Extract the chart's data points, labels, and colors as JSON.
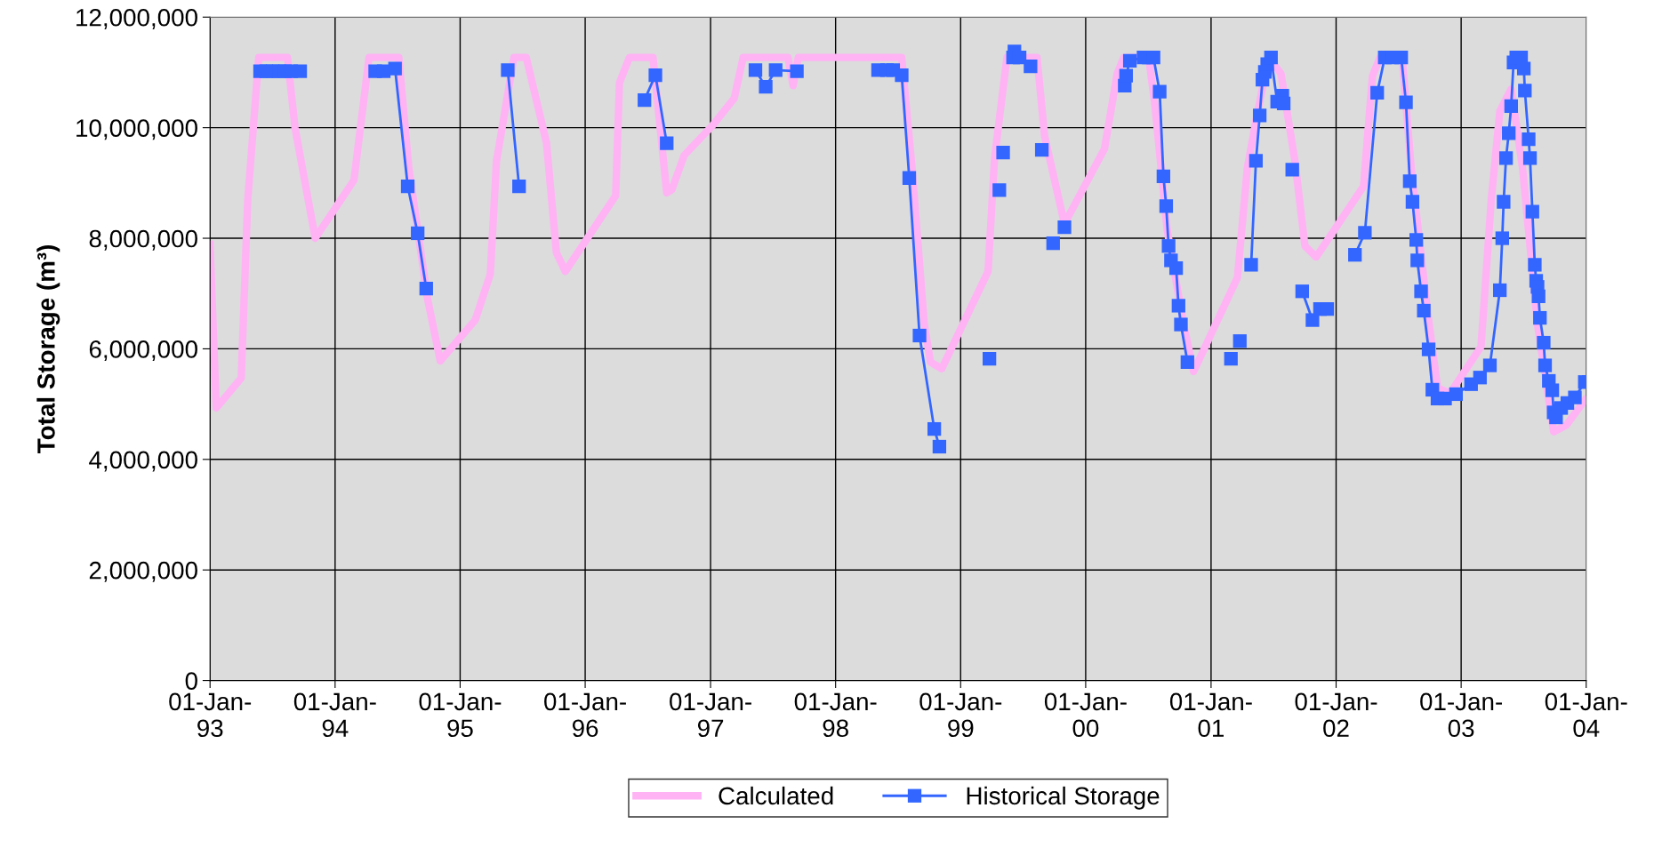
{
  "chart_data": {
    "type": "line",
    "ylabel": "Total Storage (m³)",
    "xlim": [
      "1993-01-01",
      "2004-01-01"
    ],
    "xticks": [
      {
        "value": "1993-01-01",
        "label": "01-Jan-\n93"
      },
      {
        "value": "1994-01-01",
        "label": "01-Jan-\n94"
      },
      {
        "value": "1995-01-01",
        "label": "01-Jan-\n95"
      },
      {
        "value": "1996-01-01",
        "label": "01-Jan-\n96"
      },
      {
        "value": "1997-01-01",
        "label": "01-Jan-\n97"
      },
      {
        "value": "1998-01-01",
        "label": "01-Jan-\n98"
      },
      {
        "value": "1999-01-01",
        "label": "01-Jan-\n99"
      },
      {
        "value": "2000-01-01",
        "label": "01-Jan-\n00"
      },
      {
        "value": "2001-01-01",
        "label": "01-Jan-\n01"
      },
      {
        "value": "2002-01-01",
        "label": "01-Jan-\n02"
      },
      {
        "value": "2003-01-01",
        "label": "01-Jan-\n03"
      },
      {
        "value": "2004-01-01",
        "label": "01-Jan-\n04"
      }
    ],
    "ylim": [
      0,
      12000000
    ],
    "yticks": [
      {
        "value": 0,
        "label": "0"
      },
      {
        "value": 2000000,
        "label": "2,000,000"
      },
      {
        "value": 4000000,
        "label": "4,000,000"
      },
      {
        "value": 6000000,
        "label": "6,000,000"
      },
      {
        "value": 8000000,
        "label": "8,000,000"
      },
      {
        "value": 10000000,
        "label": "10,000,000"
      },
      {
        "value": 12000000,
        "label": "12,000,000"
      }
    ],
    "grid": true,
    "legend": "bottom",
    "series": [
      {
        "name": "Calculated",
        "color": "#ffb3f5",
        "marker": "none",
        "x": [
          "1993-01-01",
          "1993-01-19",
          "1993-04-02",
          "1993-04-21",
          "1993-05-23",
          "1993-08-15",
          "1993-09-06",
          "1993-11-04",
          "1994-02-25",
          "1994-04-10",
          "1994-07-06",
          "1994-08-04",
          "1994-09-28",
          "1994-11-04",
          "1995-02-14",
          "1995-03-30",
          "1995-04-17",
          "1995-06-07",
          "1995-07-13",
          "1995-09-10",
          "1995-10-09",
          "1995-11-04",
          "1996-03-30",
          "1996-04-10",
          "1996-05-09",
          "1996-07-17",
          "1996-08-26",
          "1996-09-10",
          "1996-10-16",
          "1997-01-08",
          "1997-03-11",
          "1997-04-06",
          "1997-08-15",
          "1997-08-30",
          "1997-09-14",
          "1998-07-13",
          "1998-08-12",
          "1998-09-17",
          "1998-10-05",
          "1998-11-07",
          "1999-03-22",
          "1999-04-10",
          "1999-05-16",
          "1999-08-12",
          "1999-09-03",
          "1999-10-31",
          "2000-02-25",
          "2000-04-02",
          "2000-04-21",
          "2000-07-03",
          "2000-07-21",
          "2000-08-26",
          "2000-10-13",
          "2000-11-11",
          "2001-03-19",
          "2001-04-17",
          "2001-05-12",
          "2001-06-18",
          "2001-07-24",
          "2001-09-03",
          "2001-10-02",
          "2001-11-04",
          "2002-03-22",
          "2002-04-17",
          "2002-05-09",
          "2002-07-13",
          "2002-08-08",
          "2002-09-24",
          "2002-10-24",
          "2002-11-29",
          "2003-02-28",
          "2003-03-30",
          "2003-04-24",
          "2003-05-27",
          "2003-06-29",
          "2003-08-12",
          "2003-09-28",
          "2003-11-04",
          "2003-12-28"
        ],
        "values": [
          7890000,
          4930000,
          5470000,
          8700000,
          11270000,
          11270000,
          10000000,
          8000000,
          9050000,
          11270000,
          11270000,
          9280000,
          6900000,
          5780000,
          6520000,
          7350000,
          9390000,
          11270000,
          11270000,
          9730000,
          7740000,
          7400000,
          8770000,
          10810000,
          11270000,
          11270000,
          8820000,
          8880000,
          9500000,
          10050000,
          10530000,
          11270000,
          11270000,
          10760000,
          11270000,
          11270000,
          9280000,
          6440000,
          5760000,
          5640000,
          7400000,
          9450000,
          11270000,
          11270000,
          9850000,
          8260000,
          9620000,
          10980000,
          11270000,
          11270000,
          10410000,
          8140000,
          6440000,
          5590000,
          7290000,
          9280000,
          10130000,
          11270000,
          10980000,
          9390000,
          7860000,
          7660000,
          8940000,
          10930000,
          11270000,
          11270000,
          9280000,
          6720000,
          5300000,
          5190000,
          6040000,
          8710000,
          10300000,
          10700000,
          9280000,
          6440000,
          4500000,
          4620000,
          5070000
        ]
      },
      {
        "name": "Historical Storage",
        "color": "#3366ff",
        "marker": "square",
        "x": [
          "1993-05-27",
          "1993-06-14",
          "1993-07-03",
          "1993-07-21",
          "1993-08-08",
          "1993-08-26",
          "1993-09-21",
          null,
          "1994-04-28",
          "1994-05-23",
          "1994-06-25",
          "1994-08-01",
          "1994-08-30",
          "1994-09-24",
          null,
          "1995-05-20",
          "1995-06-22",
          null,
          "1996-06-22",
          "1996-07-24",
          "1996-08-26",
          null,
          "1997-05-12",
          "1997-06-11",
          "1997-07-10",
          "1997-09-10",
          null,
          "1998-05-05",
          "1998-05-31",
          "1998-06-18",
          "1998-07-13",
          "1998-08-04",
          "1998-09-03",
          "1998-10-16",
          "1998-10-31",
          null,
          "1999-03-26",
          null,
          "1999-04-24",
          null,
          "1999-05-05",
          null,
          "1999-06-03",
          "1999-06-07",
          "1999-06-22",
          "1999-07-24",
          null,
          "1999-08-26",
          null,
          "1999-09-28",
          null,
          "1999-10-31",
          null,
          "2000-04-24",
          "2000-04-28",
          "2000-05-09",
          "2000-06-18",
          "2000-07-03",
          "2000-07-17",
          "2000-08-04",
          "2000-08-15",
          "2000-08-23",
          "2000-08-30",
          "2000-09-06",
          "2000-09-21",
          "2000-09-28",
          "2000-10-05",
          "2000-10-24",
          null,
          "2001-02-28",
          null,
          "2001-03-26",
          null,
          "2001-04-28",
          "2001-05-12",
          "2001-05-23",
          "2001-05-31",
          "2001-06-07",
          "2001-06-14",
          "2001-06-25",
          "2001-07-13",
          "2001-07-28",
          "2001-08-01",
          null,
          "2001-08-26",
          null,
          "2001-09-24",
          "2001-10-24",
          "2001-11-15",
          "2001-12-06",
          null,
          "2002-02-25",
          "2002-03-26",
          "2002-05-01",
          "2002-05-23",
          "2002-06-14",
          "2002-07-10",
          "2002-07-24",
          "2002-08-04",
          "2002-08-12",
          "2002-08-23",
          "2002-08-26",
          "2002-09-06",
          "2002-09-14",
          "2002-09-28",
          "2002-10-09",
          "2002-10-24",
          "2002-11-15",
          "2002-12-17",
          "2003-01-30",
          "2003-02-25",
          "2003-03-26",
          "2003-04-24",
          "2003-05-01",
          "2003-05-05",
          "2003-05-12",
          "2003-05-20",
          "2003-05-27",
          "2003-06-03",
          "2003-06-11",
          "2003-06-25",
          "2003-07-03",
          "2003-07-06",
          "2003-07-17",
          "2003-07-21",
          "2003-07-28",
          "2003-08-04",
          "2003-08-08",
          "2003-08-12",
          "2003-08-15",
          "2003-08-19",
          "2003-08-30",
          "2003-09-03",
          "2003-09-14",
          "2003-09-24",
          "2003-09-28",
          "2003-10-05",
          "2003-10-20",
          "2003-11-07",
          "2003-11-29",
          "2003-12-28"
        ],
        "values": [
          11020000,
          11020000,
          11020000,
          11020000,
          11020000,
          11020000,
          11020000,
          null,
          11020000,
          11020000,
          11070000,
          8940000,
          8090000,
          7090000,
          null,
          11040000,
          8940000,
          null,
          10500000,
          10950000,
          9720000,
          null,
          11040000,
          10740000,
          11040000,
          11020000,
          null,
          11040000,
          11040000,
          11040000,
          10950000,
          9090000,
          6240000,
          4550000,
          4230000,
          null,
          5820000,
          null,
          8870000,
          null,
          9550000,
          null,
          11270000,
          11380000,
          11270000,
          11110000,
          null,
          9600000,
          null,
          7910000,
          null,
          8200000,
          null,
          10760000,
          10940000,
          11210000,
          11270000,
          11270000,
          11270000,
          10650000,
          9120000,
          8580000,
          7860000,
          7600000,
          7460000,
          6780000,
          6440000,
          5760000,
          null,
          5820000,
          null,
          6140000,
          null,
          7520000,
          9400000,
          10220000,
          10870000,
          11010000,
          11150000,
          11270000,
          10470000,
          10580000,
          10440000,
          null,
          9240000,
          null,
          7040000,
          6520000,
          6720000,
          6720000,
          null,
          7700000,
          8100000,
          10630000,
          11270000,
          11270000,
          11270000,
          10460000,
          9030000,
          8660000,
          7970000,
          7600000,
          7040000,
          6690000,
          5990000,
          5260000,
          5100000,
          5100000,
          5180000,
          5360000,
          5480000,
          5700000,
          7060000,
          8000000,
          8660000,
          9450000,
          9900000,
          10390000,
          11180000,
          11270000,
          11270000,
          11070000,
          10670000,
          9790000,
          9450000,
          8480000,
          7520000,
          7230000,
          7120000,
          6950000,
          6560000,
          6110000,
          5700000,
          5420000,
          5250000,
          4850000,
          4760000,
          4930000,
          5020000,
          5120000,
          5400000
        ]
      }
    ]
  }
}
